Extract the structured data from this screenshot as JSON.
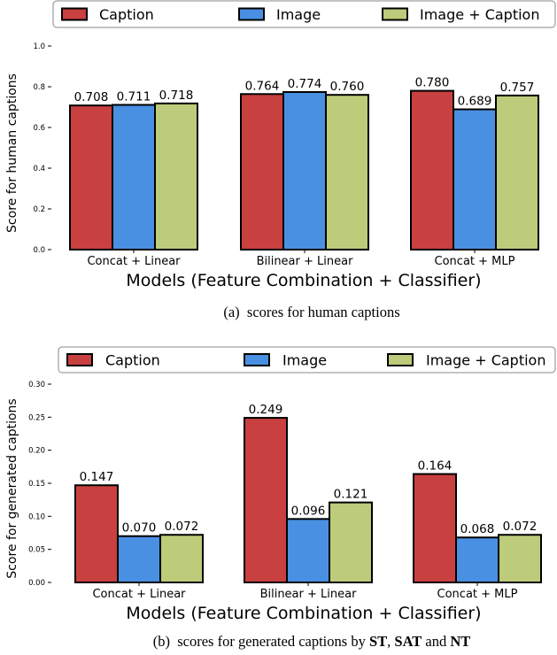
{
  "chart_data": [
    {
      "type": "bar",
      "xlabel": "Models (Feature Combination + Classifier)",
      "ylabel": "Score for human captions",
      "caption": {
        "prefix": "(a)",
        "text": "scores for human captions"
      },
      "categories": [
        "Concat + Linear",
        "Bilinear + Linear",
        "Concat + MLP"
      ],
      "ylim": [
        0,
        1.0
      ],
      "yticks": [
        "0.0",
        "0.2",
        "0.4",
        "0.6",
        "0.8",
        "1.0"
      ],
      "legend_position": "top",
      "grid": false,
      "series": [
        {
          "name": "Caption",
          "color": "#c94040",
          "values": [
            0.708,
            0.764,
            0.78
          ],
          "labels": [
            "0.708",
            "0.764",
            "0.780"
          ]
        },
        {
          "name": "Image",
          "color": "#4a90e2",
          "values": [
            0.711,
            0.774,
            0.689
          ],
          "labels": [
            "0.711",
            "0.774",
            "0.689"
          ]
        },
        {
          "name": "Image + Caption",
          "color": "#bdcc7a",
          "values": [
            0.718,
            0.76,
            0.757
          ],
          "labels": [
            "0.718",
            "0.760",
            "0.757"
          ]
        }
      ]
    },
    {
      "type": "bar",
      "xlabel": "Models (Feature Combination + Classifier)",
      "ylabel": "Score for generated captions",
      "caption": {
        "prefix": "(b)",
        "text": "scores for generated captions by",
        "st": "ST",
        "sep": ",",
        "sat": "SAT",
        "and": "and",
        "nt": "NT"
      },
      "categories": [
        "Concat + Linear",
        "Bilinear + Linear",
        "Concat + MLP"
      ],
      "ylim": [
        0,
        0.3
      ],
      "yticks": [
        "0.00",
        "0.05",
        "0.10",
        "0.15",
        "0.20",
        "0.25",
        "0.30"
      ],
      "legend_position": "top",
      "grid": false,
      "series": [
        {
          "name": "Caption",
          "color": "#c94040",
          "values": [
            0.147,
            0.249,
            0.164
          ],
          "labels": [
            "0.147",
            "0.249",
            "0.164"
          ]
        },
        {
          "name": "Image",
          "color": "#4a90e2",
          "values": [
            0.07,
            0.096,
            0.068
          ],
          "labels": [
            "0.070",
            "0.096",
            "0.068"
          ]
        },
        {
          "name": "Image + Caption",
          "color": "#bdcc7a",
          "values": [
            0.072,
            0.121,
            0.072
          ],
          "labels": [
            "0.072",
            "0.121",
            "0.072"
          ]
        }
      ]
    }
  ]
}
